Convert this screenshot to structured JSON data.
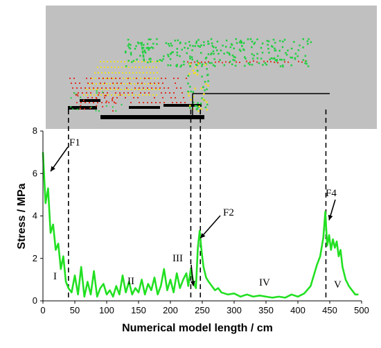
{
  "chart_data": {
    "type": "line",
    "xlabel": "Numerical model length / cm",
    "ylabel": "Stress / MPa",
    "xlim": [
      0,
      500
    ],
    "ylim": [
      0,
      8
    ],
    "xticks": [
      0,
      50,
      100,
      150,
      200,
      250,
      300,
      350,
      400,
      450,
      500
    ],
    "yticks": [
      0,
      2,
      4,
      6,
      8
    ],
    "grid": false,
    "line_color": "#22e022",
    "series": [
      {
        "x": [
          0,
          4,
          8,
          12,
          16,
          20,
          24,
          28,
          32,
          36,
          40,
          45,
          50,
          55,
          60,
          65,
          70,
          75,
          80,
          85,
          90,
          95,
          100,
          105,
          110,
          115,
          120,
          125,
          130,
          135,
          140,
          145,
          150,
          155,
          160,
          165,
          170,
          175,
          180,
          185,
          190,
          195,
          200,
          205,
          210,
          215,
          220,
          225,
          228,
          232,
          236,
          240,
          243,
          246,
          249,
          252,
          256,
          260,
          265,
          270,
          275,
          280,
          290,
          300,
          310,
          320,
          330,
          340,
          350,
          360,
          370,
          380,
          390,
          400,
          410,
          420,
          425,
          430,
          435,
          440,
          443,
          446,
          449,
          452,
          455,
          458,
          461,
          464,
          467,
          470,
          475,
          480,
          485,
          490,
          495
        ],
        "y": [
          7.0,
          4.6,
          5.3,
          3.2,
          3.6,
          2.4,
          2.7,
          1.5,
          2.1,
          0.9,
          0.6,
          0.4,
          1.2,
          0.3,
          1.6,
          0.2,
          0.9,
          0.3,
          1.4,
          0.2,
          0.6,
          0.8,
          0.3,
          0.5,
          0.2,
          0.7,
          0.3,
          1.2,
          0.4,
          0.9,
          0.3,
          0.6,
          0.4,
          1.0,
          0.3,
          0.8,
          0.5,
          1.1,
          0.3,
          0.7,
          1.5,
          0.5,
          1.0,
          0.4,
          1.3,
          0.6,
          1.0,
          1.3,
          0.7,
          1.5,
          0.9,
          0.6,
          2.5,
          3.3,
          2.3,
          1.6,
          1.1,
          0.9,
          0.7,
          0.5,
          0.6,
          0.4,
          0.3,
          0.35,
          0.2,
          0.3,
          0.2,
          0.25,
          0.2,
          0.15,
          0.2,
          0.15,
          0.3,
          0.2,
          0.35,
          0.7,
          1.2,
          1.7,
          2.1,
          3.0,
          4.2,
          2.6,
          3.1,
          2.4,
          2.9,
          2.5,
          2.8,
          2.1,
          2.4,
          1.6,
          1.0,
          0.7,
          0.5,
          0.3,
          0.3
        ]
      }
    ],
    "annotations": {
      "points": [
        "F1",
        "F2",
        "F4"
      ],
      "zones": [
        "I",
        "II",
        "III",
        "IV",
        "V"
      ]
    }
  }
}
